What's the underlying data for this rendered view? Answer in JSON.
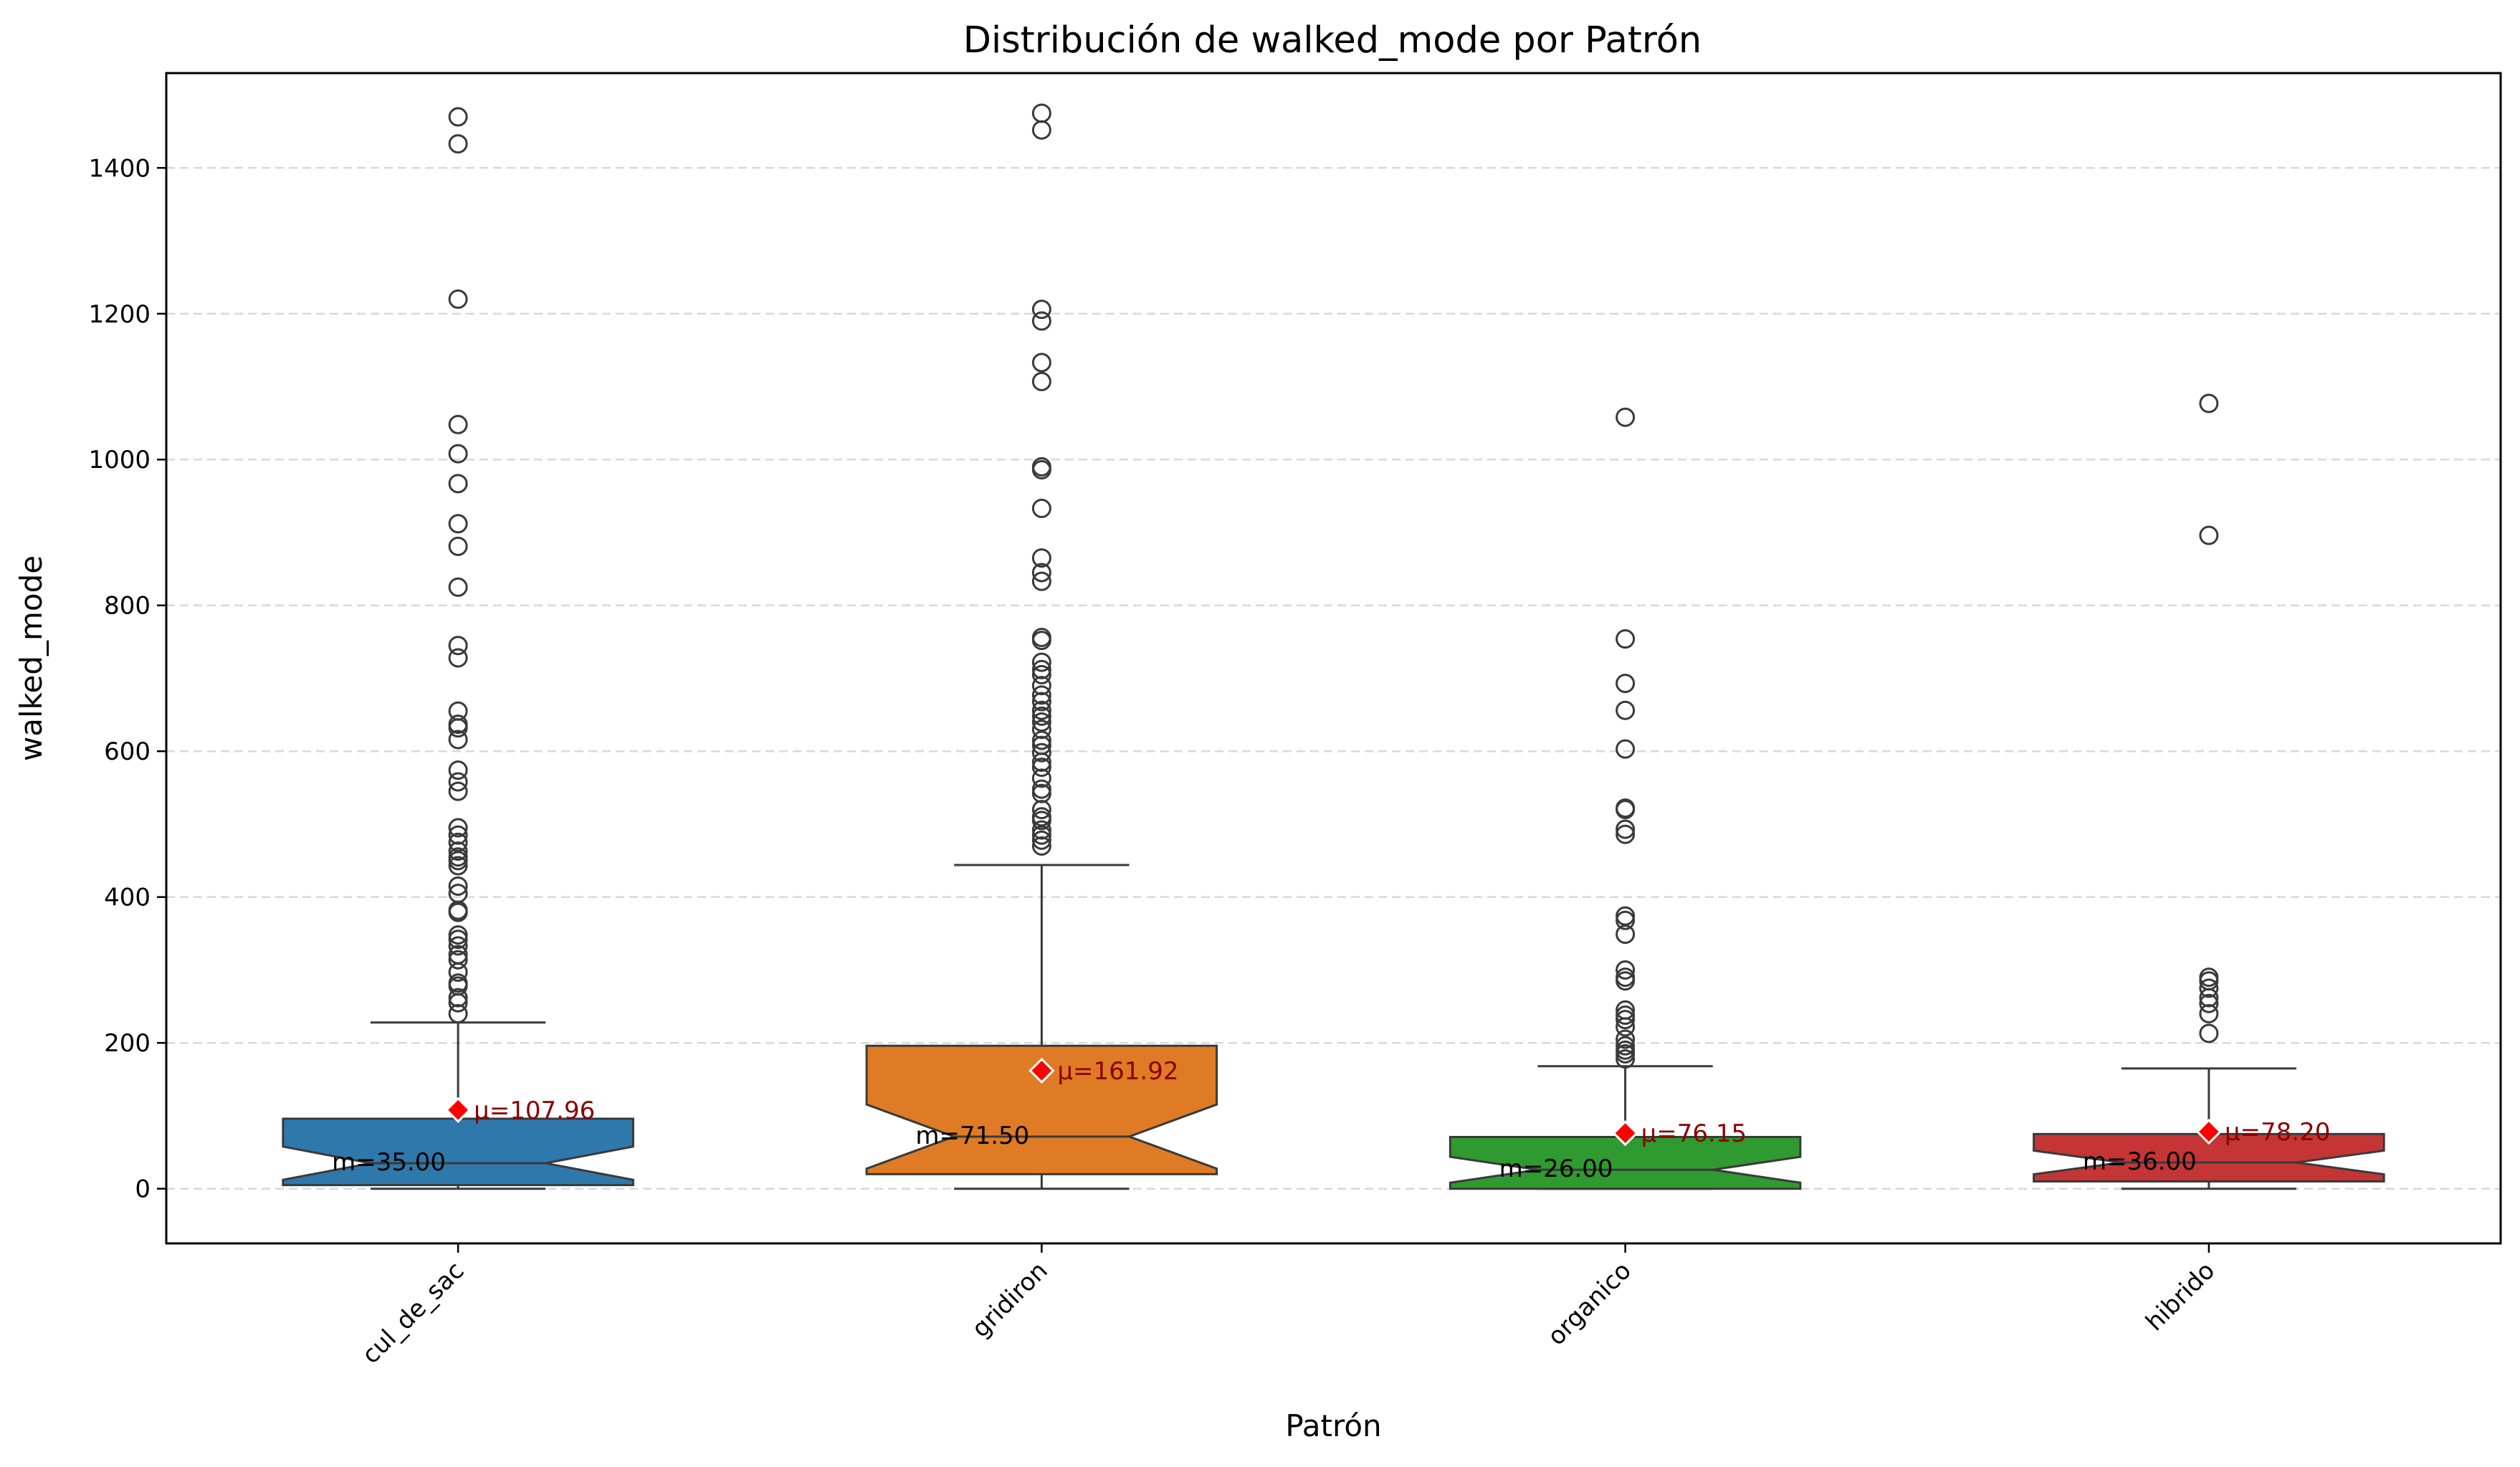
{
  "chart_data": {
    "type": "box",
    "title": "Distribución de walked_mode por Patrón",
    "xlabel": "Patrón",
    "ylabel": "walked_mode",
    "ylim": [
      -75,
      1530
    ],
    "yticks": [
      0,
      200,
      400,
      600,
      800,
      1000,
      1200,
      1400
    ],
    "grid": "y-dashed",
    "notched": true,
    "categories": [
      "cul_de_sac",
      "gridiron",
      "organico",
      "hibrido"
    ],
    "colors": [
      "#2f78ac",
      "#e07b25",
      "#2f9a2f",
      "#c53536"
    ],
    "mean_color": "#ff0000",
    "boxes": [
      {
        "name": "cul_de_sac",
        "whisker_low": 0,
        "q1": 5,
        "median": 35,
        "q3": 96,
        "whisker_high": 228,
        "mean": 107.96,
        "median_label": "m=35.00",
        "mean_label": "μ=107.96",
        "outliers": [
          1470,
          1433,
          1220,
          1048,
          1008,
          967,
          912,
          881,
          825,
          745,
          728,
          655,
          637,
          632,
          616,
          574,
          558,
          545,
          495,
          485,
          475,
          463,
          455,
          450,
          443,
          415,
          405,
          382,
          379,
          348,
          342,
          333,
          321,
          314,
          297,
          282,
          278,
          262,
          255,
          240
        ]
      },
      {
        "name": "gridiron",
        "whisker_low": 0,
        "q1": 20,
        "median": 71.5,
        "q3": 196,
        "whisker_high": 444,
        "mean": 161.92,
        "median_label": "m=71.50",
        "mean_label": "μ=161.92",
        "outliers": [
          1475,
          1452,
          1206,
          1190,
          1133,
          1107,
          990,
          986,
          933,
          865,
          845,
          833,
          756,
          752,
          722,
          712,
          705,
          690,
          677,
          668,
          656,
          648,
          640,
          630,
          615,
          608,
          598,
          585,
          578,
          563,
          548,
          542,
          520,
          510,
          505,
          492,
          485,
          478,
          470
        ]
      },
      {
        "name": "organico",
        "whisker_low": 0,
        "q1": 0,
        "median": 26,
        "q3": 71,
        "whisker_high": 168,
        "mean": 76.15,
        "median_label": "m=26.00",
        "mean_label": "μ=76.15",
        "outliers": [
          1058,
          754,
          693,
          656,
          603,
          522,
          520,
          493,
          486,
          374,
          368,
          349,
          300,
          290,
          285,
          245,
          238,
          232,
          222,
          205,
          196,
          190,
          185,
          178
        ]
      },
      {
        "name": "hibrido",
        "whisker_low": 0,
        "q1": 10,
        "median": 36,
        "q3": 75,
        "whisker_high": 165,
        "mean": 78.2,
        "median_label": "m=36.00",
        "mean_label": "μ=78.20",
        "outliers": [
          1077,
          896,
          290,
          285,
          275,
          262,
          254,
          240,
          213
        ]
      }
    ]
  }
}
